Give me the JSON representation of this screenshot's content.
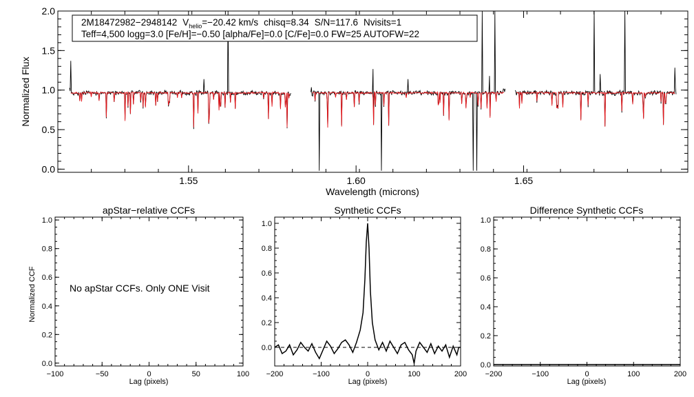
{
  "chart_data": [
    {
      "type": "line",
      "id": "spectrum",
      "xlabel": "Wavelength (microns)",
      "ylabel": "Normalized Flux",
      "xlim": [
        1.511,
        1.699
      ],
      "ylim": [
        -0.04,
        2.0
      ],
      "xticks": [
        "1.55",
        "1.60",
        "1.65"
      ],
      "yticks": [
        "0.0",
        "0.5",
        "1.0",
        "1.5",
        "2.0"
      ],
      "segments": [
        [
          1.5145,
          1.5805
        ],
        [
          1.5865,
          1.6445
        ],
        [
          1.6475,
          1.6955
        ]
      ],
      "series": [
        {
          "name": "observed spectrum",
          "color": "#000000"
        },
        {
          "name": "best-fit synthetic",
          "color": "#e8161b"
        }
      ],
      "infobox": {
        "star_id": "2M18472982−2948142",
        "v_label": "V",
        "v_sub": "helio",
        "v_value": "=−20.42 km/s",
        "chisq": "chisq=8.34",
        "snr": "S/N=117.6",
        "nvisits": "Nvisits=1",
        "params": "Teff=4,500 logg=3.0 [Fe/H]=−0.50 [alpha/Fe]=0.0 [C/Fe]=0.0 FW=25 AUTOFW=22"
      }
    },
    {
      "type": "line",
      "id": "apstar_ccf",
      "title": "apStar−relative CCFs",
      "xlabel": "Lag (pixels)",
      "ylabel": "Normalized CCF",
      "xlim": [
        -100,
        100
      ],
      "ylim": [
        -0.02,
        1.02
      ],
      "xticks": [
        "−100",
        "−50",
        "0",
        "50",
        "100"
      ],
      "yticks": [
        "0.0",
        "0.2",
        "0.4",
        "0.6",
        "0.8",
        "1.0"
      ],
      "annotation": "No apStar CCFs.  Only ONE Visit",
      "series": []
    },
    {
      "type": "line",
      "id": "synthetic_ccf",
      "title": "Synthetic CCFs",
      "xlabel": "Lag (pixels)",
      "xlim": [
        -200,
        200
      ],
      "ylim": [
        -0.15,
        1.05
      ],
      "xticks": [
        "−200",
        "−100",
        "0",
        "100",
        "200"
      ],
      "yticks": [
        "0.0",
        "0.2",
        "0.4",
        "0.6",
        "0.8",
        "1.0"
      ],
      "baseline": 0.0,
      "series": [
        {
          "name": "synthetic CCF",
          "x": [
            -200,
            -192,
            -184,
            -176,
            -168,
            -160,
            -152,
            -144,
            -136,
            -128,
            -120,
            -112,
            -104,
            -96,
            -88,
            -80,
            -72,
            -64,
            -56,
            -48,
            -40,
            -32,
            -24,
            -16,
            -10,
            -6,
            -3,
            0,
            3,
            6,
            10,
            16,
            24,
            32,
            40,
            48,
            56,
            64,
            72,
            80,
            88,
            96,
            100,
            104,
            112,
            120,
            128,
            136,
            144,
            152,
            160,
            168,
            176,
            184,
            192,
            196,
            200
          ],
          "y": [
            0.0,
            0.02,
            -0.05,
            -0.03,
            0.02,
            -0.06,
            -0.02,
            0.04,
            0.0,
            -0.03,
            0.03,
            -0.04,
            -0.09,
            -0.02,
            0.05,
            0.01,
            -0.05,
            -0.01,
            0.04,
            0.06,
            0.02,
            -0.04,
            0.04,
            0.14,
            0.28,
            0.55,
            0.85,
            1.0,
            0.8,
            0.45,
            0.2,
            0.06,
            -0.02,
            0.04,
            -0.03,
            0.05,
            0.0,
            -0.05,
            0.02,
            0.04,
            -0.02,
            -0.06,
            -0.13,
            -0.03,
            0.04,
            0.0,
            -0.04,
            0.03,
            -0.05,
            0.01,
            -0.03,
            0.02,
            -0.08,
            0.01,
            -0.06,
            0.0,
            0.0
          ]
        }
      ]
    },
    {
      "type": "line",
      "id": "difference_ccf",
      "title": "Difference Synthetic CCFs",
      "xlabel": "Lag (pixels)",
      "xlim": [
        -200,
        200
      ],
      "ylim": [
        -0.01,
        1.02
      ],
      "xticks": [
        "−200",
        "−100",
        "0",
        "100",
        "200"
      ],
      "yticks": [
        "0.0",
        "0.2",
        "0.4",
        "0.6",
        "0.8",
        "1.0"
      ],
      "series": [
        {
          "name": "difference CCF",
          "x": [
            -200,
            200
          ],
          "y": [
            0.0,
            0.0
          ]
        }
      ]
    }
  ]
}
